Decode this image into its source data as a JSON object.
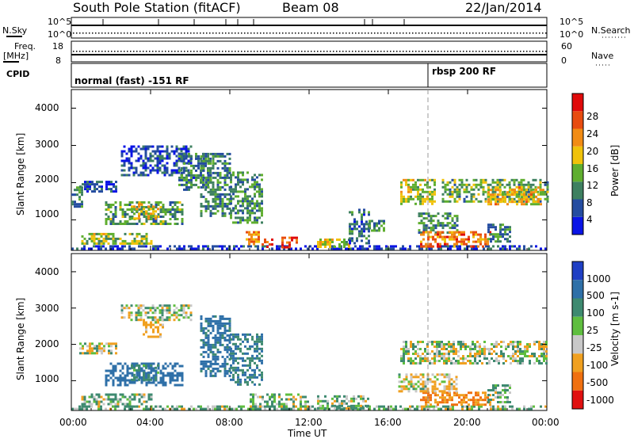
{
  "header": {
    "station": "South Pole Station (fitACF)",
    "beam": "Beam 08",
    "date": "22/Jan/2014"
  },
  "top_panels": {
    "nsky_label": "N.Sky",
    "nsky_ticks": [
      "10^5",
      "10^0"
    ],
    "nsearch_label": "N.Search",
    "nsearch_ticks": [
      "10^5",
      "10^0"
    ],
    "freq_label_1": "Freq.",
    "freq_label_2": "[MHz]",
    "freq_ticks": [
      "18",
      "8"
    ],
    "nave_label": "Nave",
    "nave_ticks": [
      "60",
      "0"
    ],
    "cpid_label": "CPID",
    "cpid_modes": [
      {
        "text": "normal (fast) -151 RF",
        "start_hour": 0
      },
      {
        "text": "rbsp 200 RF",
        "start_hour": 18.0
      }
    ]
  },
  "axes": {
    "ylabel": "Slant Range [km]",
    "yticks": [
      "1000",
      "2000",
      "3000",
      "4000"
    ],
    "xlabel": "Time UT",
    "xticks": [
      "00:00",
      "04:00",
      "08:00",
      "12:00",
      "16:00",
      "20:00",
      "00:00"
    ]
  },
  "power_colorbar": {
    "label": "Power [dB]",
    "ticks": [
      "4",
      "8",
      "12",
      "16",
      "20",
      "24",
      "28"
    ],
    "colors": [
      "#0a14e6",
      "#244ca0",
      "#3e8060",
      "#5fae2f",
      "#f0c20a",
      "#f28c14",
      "#e84c10",
      "#e00a0a"
    ]
  },
  "velocity_colorbar": {
    "label": "Velocity [m s-1]",
    "ticks": [
      "1000",
      "500",
      "100",
      "25",
      "-25",
      "-100",
      "-500",
      "-1000"
    ],
    "colors": [
      "#1f3fc4",
      "#2f70a8",
      "#3e8a70",
      "#5fbe3f",
      "#c8c8c8",
      "#f0a020",
      "#f07010",
      "#e01010"
    ]
  },
  "chart_data": [
    {
      "type": "heatmap",
      "title": "Power",
      "xlabel": "Time UT",
      "ylabel": "Slant Range [km]",
      "xlim": [
        0,
        24
      ],
      "ylim": [
        180,
        4500
      ],
      "zlabel": "Power [dB]",
      "zlim": [
        0,
        30
      ],
      "regions": [
        {
          "t0": 0.0,
          "t1": 24.0,
          "r0": 200,
          "r1": 320,
          "value": 4
        },
        {
          "t0": 0.0,
          "t1": 0.6,
          "r0": 1350,
          "r1": 1900,
          "value": 8
        },
        {
          "t0": 0.4,
          "t1": 2.3,
          "r0": 1750,
          "r1": 2050,
          "value": 6
        },
        {
          "t0": 1.7,
          "t1": 5.6,
          "r0": 900,
          "r1": 1500,
          "value": 11
        },
        {
          "t0": 3.0,
          "t1": 4.4,
          "r0": 1050,
          "r1": 1450,
          "value": 17
        },
        {
          "t0": 0.5,
          "t1": 4.0,
          "r0": 350,
          "r1": 650,
          "value": 14
        },
        {
          "t0": 2.5,
          "t1": 6.0,
          "r0": 2200,
          "r1": 3000,
          "value": 5
        },
        {
          "t0": 5.4,
          "t1": 7.0,
          "r0": 1800,
          "r1": 2800,
          "value": 8
        },
        {
          "t0": 6.5,
          "t1": 8.0,
          "r0": 1100,
          "r1": 2800,
          "value": 9
        },
        {
          "t0": 8.0,
          "t1": 9.6,
          "r0": 900,
          "r1": 2300,
          "value": 10
        },
        {
          "t0": 8.8,
          "t1": 9.5,
          "r0": 350,
          "r1": 700,
          "value": 20
        },
        {
          "t0": 9.6,
          "t1": 10.2,
          "r0": 250,
          "r1": 500,
          "value": 26
        },
        {
          "t0": 10.6,
          "t1": 11.4,
          "r0": 250,
          "r1": 550,
          "value": 25
        },
        {
          "t0": 12.4,
          "t1": 14.0,
          "r0": 250,
          "r1": 500,
          "value": 16
        },
        {
          "t0": 14.0,
          "t1": 15.0,
          "r0": 350,
          "r1": 1300,
          "value": 8
        },
        {
          "t0": 15.0,
          "t1": 15.8,
          "r0": 700,
          "r1": 1000,
          "value": 10
        },
        {
          "t0": 16.6,
          "t1": 18.4,
          "r0": 1400,
          "r1": 2100,
          "value": 15
        },
        {
          "t0": 17.5,
          "t1": 19.5,
          "r0": 650,
          "r1": 1200,
          "value": 10
        },
        {
          "t0": 17.6,
          "t1": 21.2,
          "r0": 300,
          "r1": 700,
          "value": 22
        },
        {
          "t0": 18.7,
          "t1": 24.0,
          "r0": 1500,
          "r1": 2100,
          "value": 12
        },
        {
          "t0": 21.0,
          "t1": 23.8,
          "r0": 1450,
          "r1": 1900,
          "value": 18
        },
        {
          "t0": 21.0,
          "t1": 22.2,
          "r0": 400,
          "r1": 900,
          "value": 9
        }
      ]
    },
    {
      "type": "heatmap",
      "title": "Velocity",
      "xlabel": "Time UT",
      "ylabel": "Slant Range [km]",
      "xlim": [
        0,
        24
      ],
      "ylim": [
        180,
        4500
      ],
      "zlabel": "Velocity [m s-1]",
      "zlim": [
        -1000,
        1000
      ],
      "regions": [
        {
          "t0": 0.0,
          "t1": 24.0,
          "r0": 200,
          "r1": 320,
          "value": 60
        },
        {
          "t0": 0.4,
          "t1": 2.3,
          "r0": 1750,
          "r1": 2050,
          "value": 0
        },
        {
          "t0": 1.7,
          "t1": 5.6,
          "r0": 900,
          "r1": 1500,
          "value": 600
        },
        {
          "t0": 3.0,
          "t1": 4.4,
          "r0": 1050,
          "r1": 1450,
          "value": 200
        },
        {
          "t0": 0.5,
          "t1": 4.0,
          "r0": 300,
          "r1": 650,
          "value": 60
        },
        {
          "t0": 3.6,
          "t1": 4.6,
          "r0": 2200,
          "r1": 2700,
          "value": -120
        },
        {
          "t0": 2.5,
          "t1": 6.0,
          "r0": 2700,
          "r1": 3100,
          "value": 0
        },
        {
          "t0": 6.5,
          "t1": 8.0,
          "r0": 1100,
          "r1": 2800,
          "value": 400
        },
        {
          "t0": 8.0,
          "t1": 9.6,
          "r0": 900,
          "r1": 2300,
          "value": 300
        },
        {
          "t0": 9.0,
          "t1": 12.0,
          "r0": 250,
          "r1": 650,
          "value": 60
        },
        {
          "t0": 12.4,
          "t1": 15.0,
          "r0": 250,
          "r1": 600,
          "value": 60
        },
        {
          "t0": 16.6,
          "t1": 24.0,
          "r0": 1500,
          "r1": 2100,
          "value": 0
        },
        {
          "t0": 17.6,
          "t1": 21.2,
          "r0": 320,
          "r1": 700,
          "value": -300
        },
        {
          "t0": 16.5,
          "t1": 19.5,
          "r0": 700,
          "r1": 1200,
          "value": -60
        },
        {
          "t0": 21.0,
          "t1": 22.2,
          "r0": 400,
          "r1": 900,
          "value": 80
        }
      ]
    }
  ]
}
